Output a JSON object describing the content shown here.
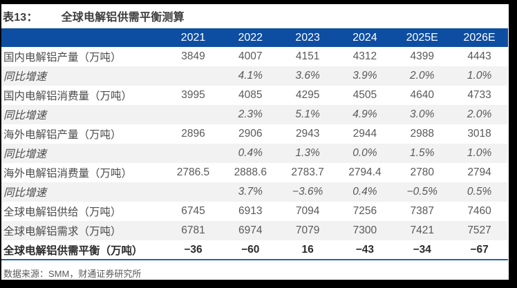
{
  "title": {
    "tag": "表13：",
    "text": "全球电解铝供需平衡测算"
  },
  "chart_data": {
    "type": "table",
    "title": "全球电解铝供需平衡测算",
    "columns": [
      "2021",
      "2022",
      "2023",
      "2024",
      "2025E",
      "2026E"
    ],
    "corner_label": "",
    "rows": [
      {
        "label": "国内电解铝产量（万吨）",
        "style": "normal",
        "cells": [
          "3849",
          "4007",
          "4151",
          "4312",
          "4399",
          "4443"
        ]
      },
      {
        "label": "同比增速",
        "style": "italic",
        "cells": [
          "",
          "4.1%",
          "3.6%",
          "3.9%",
          "2.0%",
          "1.0%"
        ]
      },
      {
        "label": "国内电解铝消费量（万吨）",
        "style": "normal",
        "cells": [
          "3995",
          "4085",
          "4295",
          "4505",
          "4640",
          "4733"
        ]
      },
      {
        "label": "同比增速",
        "style": "italic",
        "cells": [
          "",
          "2.3%",
          "5.1%",
          "4.9%",
          "3.0%",
          "2.0%"
        ]
      },
      {
        "label": "海外电解铝产量（万吨）",
        "style": "normal",
        "cells": [
          "2896",
          "2906",
          "2943",
          "2944",
          "2988",
          "3018"
        ]
      },
      {
        "label": "同比增速",
        "style": "italic",
        "cells": [
          "",
          "0.4%",
          "1.3%",
          "0.0%",
          "1.5%",
          "1.0%"
        ]
      },
      {
        "label": "海外电解铝消费量（万吨）",
        "style": "normal",
        "cells": [
          "2786.5",
          "2888.6",
          "2783.7",
          "2794.4",
          "2780",
          "2794"
        ]
      },
      {
        "label": "同比增速",
        "style": "italic",
        "cells": [
          "",
          "3.7%",
          "−3.6%",
          "0.4%",
          "−0.5%",
          "0.5%"
        ]
      },
      {
        "label": "全球电解铝供给（万吨）",
        "style": "normal",
        "cells": [
          "6745",
          "6913",
          "7094",
          "7256",
          "7387",
          "7460"
        ]
      },
      {
        "label": "全球电解铝需求（万吨）",
        "style": "normal",
        "cells": [
          "6781",
          "6974",
          "7079",
          "7300",
          "7421",
          "7527"
        ]
      },
      {
        "label": "全球电解铝供需平衡（万吨）",
        "style": "bold",
        "cells": [
          "−36",
          "−60",
          "16",
          "−43",
          "−34",
          "−67"
        ]
      }
    ]
  },
  "footer": {
    "source": "数据来源：SMM，财通证券研究所"
  },
  "colors": {
    "header_bg": "#0d4ea2",
    "row_alt_bg": "#f2f2f2",
    "bottom_rule": "#2064ae",
    "text_label": "#4c4c4c",
    "text_value": "#595959",
    "frame_bg": "#000000"
  }
}
